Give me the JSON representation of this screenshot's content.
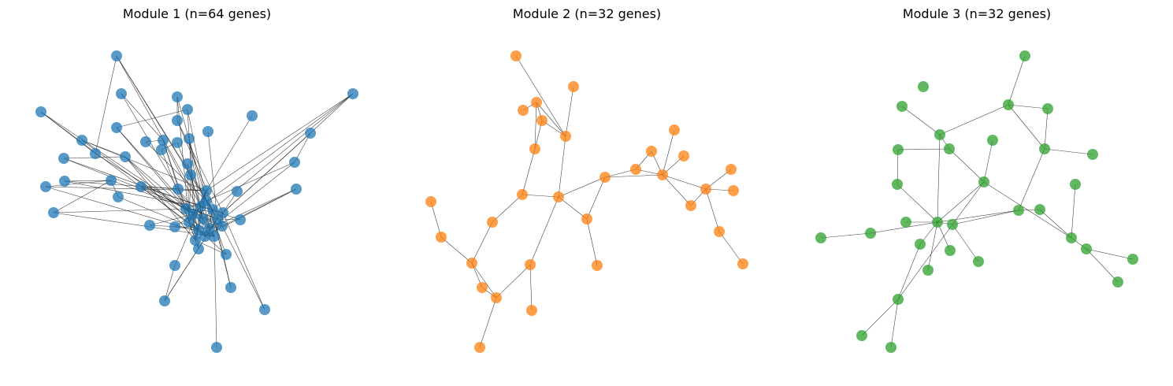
{
  "panels": [
    {
      "title": "Module 1 (n=64 genes)",
      "color": "#1f77b4",
      "node_count": 64
    },
    {
      "title": "Module 2 (n=32 genes)",
      "color": "#ff7f0e",
      "node_count": 32
    },
    {
      "title": "Module 3 (n=32 genes)",
      "color": "#2ca02c",
      "node_count": 32
    }
  ]
}
